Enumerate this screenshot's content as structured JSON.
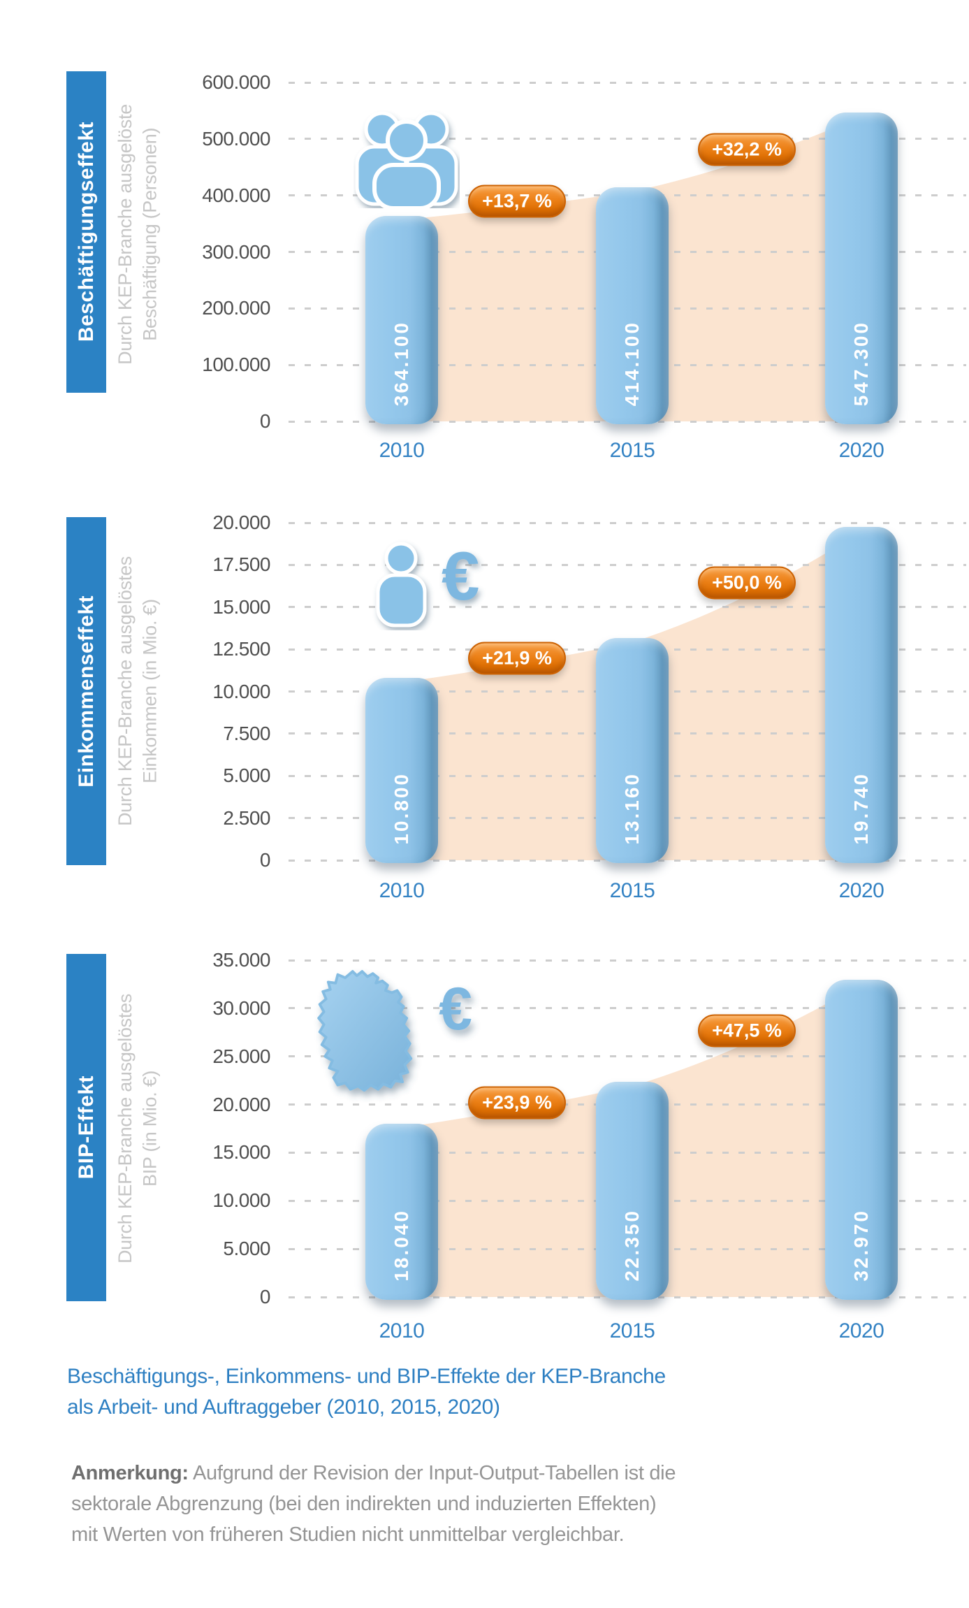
{
  "page": {
    "background": "#ffffff"
  },
  "colors": {
    "band_blue": "#2b82c4",
    "bar_blue": "#8ec2e7",
    "badge_orange": "#e87812",
    "area_peach": "#fbe4d0",
    "year_label_blue": "#3382c3",
    "caption_blue": "#2d7fc2",
    "tick_gray": "#4f4f4f",
    "axis_desc_gray": "#c6c6c6",
    "icon_blue": "#88c1e6"
  },
  "chart_data": [
    {
      "type": "bar",
      "title": "Beschäftigungseffekt",
      "ylabel_line1": "Durch KEP-Branche ausgelöste",
      "ylabel_line2": "Beschäftigung (Personen)",
      "icon": "people-group-icon",
      "categories": [
        "2010",
        "2015",
        "2020"
      ],
      "values": [
        364100,
        414100,
        547300
      ],
      "value_labels": [
        "364.100",
        "414.100",
        "547.300"
      ],
      "growth_badges": [
        "+13,7 %",
        "+32,2 %"
      ],
      "y_ticks": [
        "600.000",
        "500.000",
        "400.000",
        "300.000",
        "200.000",
        "100.000",
        "0"
      ],
      "ylim": [
        0,
        600000
      ],
      "grid": "dashed-horizontal",
      "legend": "none"
    },
    {
      "type": "bar",
      "title": "Einkommenseffekt",
      "ylabel_line1": "Durch KEP-Branche ausgelöstes",
      "ylabel_line2": "Einkommen (in Mio. €)",
      "icon": "person-euro-icon",
      "categories": [
        "2010",
        "2015",
        "2020"
      ],
      "values": [
        10800,
        13160,
        19740
      ],
      "value_labels": [
        "10.800",
        "13.160",
        "19.740"
      ],
      "growth_badges": [
        "+21,9 %",
        "+50,0 %"
      ],
      "y_ticks": [
        "20.000",
        "17.500",
        "15.000",
        "12.500",
        "10.000",
        "7.500",
        "5.000",
        "2.500",
        "0"
      ],
      "ylim": [
        0,
        20000
      ],
      "grid": "dashed-horizontal",
      "legend": "none"
    },
    {
      "type": "bar",
      "title": "BIP-Effekt",
      "ylabel_line1": "Durch KEP-Branche ausgelöstes",
      "ylabel_line2": "BIP (in Mio. €)",
      "icon": "germany-map-euro-icon",
      "categories": [
        "2010",
        "2015",
        "2020"
      ],
      "values": [
        18040,
        22350,
        32970
      ],
      "value_labels": [
        "18.040",
        "22.350",
        "32.970"
      ],
      "growth_badges": [
        "+23,9 %",
        "+47,5 %"
      ],
      "y_ticks": [
        "35.000",
        "30.000",
        "25.000",
        "20.000",
        "15.000",
        "10.000",
        "5.000",
        "0"
      ],
      "ylim": [
        0,
        35000
      ],
      "grid": "dashed-horizontal",
      "legend": "none"
    }
  ],
  "caption": {
    "line1": "Beschäftigungs-, Einkommens- und BIP-Effekte der KEP-Branche",
    "line2": "als Arbeit- und Auftraggeber (2010, 2015, 2020)"
  },
  "note": {
    "label": "Anmerkung:",
    "line1": "Aufgrund der Revision der Input-Output-Tabellen ist die",
    "line2": "sektorale Abgrenzung (bei den indirekten und induzierten Effekten)",
    "line3": "mit Werten von früheren Studien nicht unmittelbar vergleichbar."
  }
}
